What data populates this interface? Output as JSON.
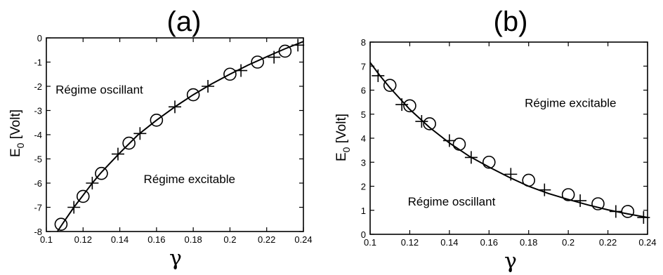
{
  "chart_data": [
    {
      "type": "scatter",
      "title": "(a)",
      "xlabel": "γ",
      "ylabel": "E₀ [Volt]",
      "ylabel_main": "E",
      "ylabel_sub": "0",
      "ylabel_unit": " [Volt]",
      "xlim": [
        0.1,
        0.24
      ],
      "ylim": [
        -8,
        0
      ],
      "xticks": [
        0.1,
        0.12,
        0.14,
        0.16,
        0.18,
        0.2,
        0.22,
        0.24
      ],
      "xtick_labels": [
        "0.1",
        "0.12",
        "0.14",
        "0.16",
        "0.18",
        "0.2",
        "0.22",
        "0.24"
      ],
      "yticks": [
        -8,
        -7,
        -6,
        -5,
        -4,
        -3,
        -2,
        -1,
        0
      ],
      "ytick_labels": [
        "-8",
        "-7",
        "-6",
        "-5",
        "-4",
        "-3",
        "-2",
        "-1",
        "0"
      ],
      "annotations": [
        {
          "text": "Régime oscillant",
          "x": 0.105,
          "y": -2.3
        },
        {
          "text": "Régime excitable",
          "x": 0.153,
          "y": -6.0
        }
      ],
      "series": [
        {
          "marker": "circle",
          "x": [
            0.108,
            0.12,
            0.13,
            0.145,
            0.16,
            0.18,
            0.2,
            0.215,
            0.23
          ],
          "y": [
            -7.7,
            -6.55,
            -5.6,
            -4.35,
            -3.4,
            -2.35,
            -1.5,
            -1.0,
            -0.55
          ]
        },
        {
          "marker": "plus",
          "x": [
            0.115,
            0.125,
            0.139,
            0.151,
            0.17,
            0.188,
            0.206,
            0.224,
            0.237
          ],
          "y": [
            -7.0,
            -6.0,
            -4.8,
            -3.95,
            -2.85,
            -2.0,
            -1.35,
            -0.8,
            -0.3
          ]
        },
        {
          "marker": "line",
          "x": [
            0.106,
            0.11,
            0.115,
            0.12,
            0.125,
            0.13,
            0.14,
            0.15,
            0.16,
            0.17,
            0.18,
            0.19,
            0.2,
            0.21,
            0.22,
            0.23,
            0.24
          ],
          "y": [
            -8.0,
            -7.55,
            -7.0,
            -6.5,
            -6.0,
            -5.55,
            -4.75,
            -4.0,
            -3.4,
            -2.85,
            -2.35,
            -1.9,
            -1.5,
            -1.12,
            -0.78,
            -0.45,
            -0.15
          ]
        }
      ]
    },
    {
      "type": "scatter",
      "title": "(b)",
      "xlabel": "γ",
      "ylabel": "E₀ [Volt]",
      "ylabel_main": "E",
      "ylabel_sub": "0",
      "ylabel_unit": " [Volt]",
      "xlim": [
        0.1,
        0.24
      ],
      "ylim": [
        0,
        8
      ],
      "xticks": [
        0.1,
        0.12,
        0.14,
        0.16,
        0.18,
        0.2,
        0.22,
        0.24
      ],
      "xtick_labels": [
        "0.1",
        "0.12",
        "0.14",
        "0.16",
        "0.18",
        "0.2",
        "0.22",
        "0.24"
      ],
      "yticks": [
        0,
        1,
        2,
        3,
        4,
        5,
        6,
        7,
        8
      ],
      "ytick_labels": [
        "0",
        "1",
        "2",
        "3",
        "4",
        "5",
        "6",
        "7",
        "8"
      ],
      "annotations": [
        {
          "text": "Régime excitable",
          "x": 0.178,
          "y": 5.3
        },
        {
          "text": "Régime oscillant",
          "x": 0.119,
          "y": 1.2
        }
      ],
      "series": [
        {
          "marker": "circle",
          "x": [
            0.11,
            0.12,
            0.13,
            0.145,
            0.16,
            0.18,
            0.2,
            0.215,
            0.23
          ],
          "y": [
            6.2,
            5.35,
            4.6,
            3.75,
            3.0,
            2.25,
            1.65,
            1.27,
            0.95
          ]
        },
        {
          "marker": "plus",
          "x": [
            0.104,
            0.116,
            0.126,
            0.14,
            0.151,
            0.171,
            0.188,
            0.206,
            0.224,
            0.238
          ],
          "y": [
            6.6,
            5.4,
            4.7,
            3.9,
            3.2,
            2.5,
            1.85,
            1.4,
            0.95,
            0.7
          ]
        },
        {
          "marker": "line",
          "x": [
            0.1,
            0.105,
            0.11,
            0.115,
            0.12,
            0.13,
            0.14,
            0.15,
            0.16,
            0.17,
            0.18,
            0.19,
            0.2,
            0.21,
            0.22,
            0.23,
            0.24
          ],
          "y": [
            7.15,
            6.6,
            6.1,
            5.65,
            5.2,
            4.45,
            3.8,
            3.25,
            2.8,
            2.38,
            2.0,
            1.7,
            1.45,
            1.22,
            1.02,
            0.85,
            0.7
          ]
        }
      ]
    }
  ]
}
